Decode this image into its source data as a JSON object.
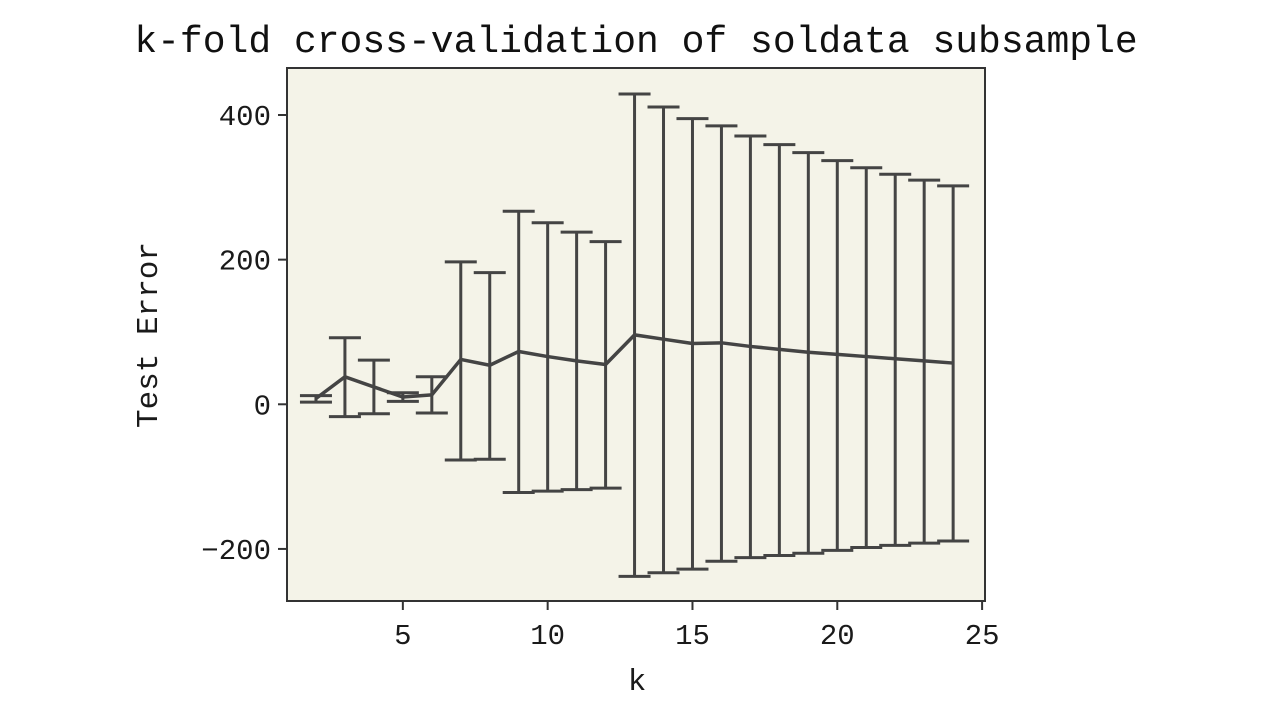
{
  "chart_data": {
    "type": "line",
    "title": "k-fold cross-validation of soldata subsample",
    "xlabel": "k",
    "ylabel": "Test Error",
    "xlim": [
      1,
      25.1
    ],
    "ylim": [
      -272,
      465
    ],
    "xticks": [
      5,
      10,
      15,
      20,
      25
    ],
    "yticks": [
      -200,
      0,
      200,
      400
    ],
    "grid": false,
    "legend": "none",
    "series": [
      {
        "x": [
          2,
          3,
          4,
          5,
          6,
          7,
          8,
          9,
          10,
          11,
          12,
          13,
          14,
          15,
          16,
          17,
          18,
          19,
          20,
          21,
          22,
          23,
          24
        ],
        "y": [
          8,
          38,
          24,
          10,
          13,
          62,
          54,
          73,
          66,
          60,
          55,
          96,
          90,
          84,
          85,
          80,
          76,
          72,
          69,
          66,
          63,
          60,
          57
        ],
        "error_upper": [
          12,
          92,
          61,
          16,
          38,
          197,
          182,
          267,
          251,
          238,
          225,
          429,
          411,
          395,
          385,
          371,
          359,
          348,
          337,
          327,
          318,
          310,
          302
        ],
        "error_lower": [
          3,
          -17,
          -13,
          4,
          -12,
          -77,
          -76,
          -122,
          -120,
          -118,
          -116,
          -238,
          -233,
          -228,
          -217,
          -212,
          -209,
          -206,
          -202,
          -198,
          -195,
          -192,
          -189
        ]
      }
    ],
    "colors": {
      "line": "#444444",
      "plot_background": "#f4f3e8",
      "axes": "#333333"
    }
  }
}
